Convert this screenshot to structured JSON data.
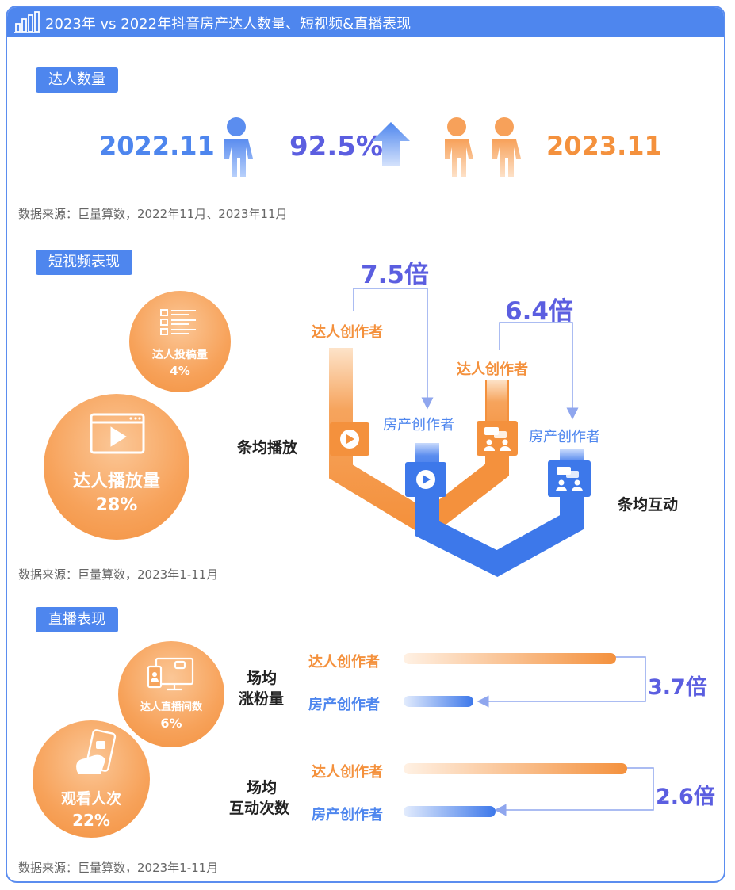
{
  "header": {
    "title": "2023年 vs 2022年抖音房产达人数量、短视频&直播表现"
  },
  "section1": {
    "label": "达人数量",
    "year_a": "2022.11",
    "growth": "92.5%",
    "year_b": "2023.11",
    "source": "数据来源：巨量算数，2022年11月、2023年11月"
  },
  "section2": {
    "label": "短视频表现",
    "bubble_small": {
      "title": "达人投稿量",
      "value": "4%"
    },
    "bubble_large": {
      "title": "达人播放量",
      "value": "28%"
    },
    "play_label": "条均播放",
    "interact_label": "条均互动",
    "creator_a": "达人创作者",
    "creator_b": "房产创作者",
    "ratio_play": "7.5倍",
    "ratio_interact": "6.4倍",
    "source": "数据来源：巨量算数，2023年1-11月"
  },
  "section3": {
    "label": "直播表现",
    "bubble_small": {
      "title": "达人直播间数",
      "value": "6%"
    },
    "bubble_large": {
      "title": "观看人次",
      "value": "22%"
    },
    "group1": {
      "line1": "场均",
      "line2": "涨粉量",
      "ratio": "3.7倍"
    },
    "group2": {
      "line1": "场均",
      "line2": "互动次数",
      "ratio": "2.6倍"
    },
    "creator_a": "达人创作者",
    "creator_b": "房产创作者",
    "source": "数据来源：巨量算数，2023年1-11月"
  },
  "chart_data": [
    {
      "type": "bar",
      "title": "达人数量",
      "categories": [
        "2022.11",
        "2023.11"
      ],
      "growth": "92.5%"
    },
    {
      "type": "bar",
      "title": "短视频表现",
      "categories": [
        "条均播放",
        "条均互动"
      ],
      "series": [
        {
          "name": "达人创作者 / 房产创作者",
          "values": [
            7.5,
            6.4
          ]
        }
      ],
      "shares": {
        "达人投稿量": 4,
        "达人播放量": 28
      }
    },
    {
      "type": "bar",
      "title": "直播表现",
      "categories": [
        "场均涨粉量",
        "场均互动次数"
      ],
      "series": [
        {
          "name": "达人创作者 / 房产创作者",
          "values": [
            3.7,
            2.6
          ]
        }
      ],
      "shares": {
        "达人直播间数": 6,
        "观看人次": 22
      }
    }
  ],
  "colors": {
    "blue": "#4e86ee",
    "orange": "#f4913d",
    "purple": "#5b5ee0"
  },
  "icons": [
    "building-chart-icon",
    "person-icon",
    "up-arrow-icon",
    "list-icon",
    "video-icon",
    "chat-people-icon",
    "live-screen-icon",
    "phone-icon"
  ]
}
